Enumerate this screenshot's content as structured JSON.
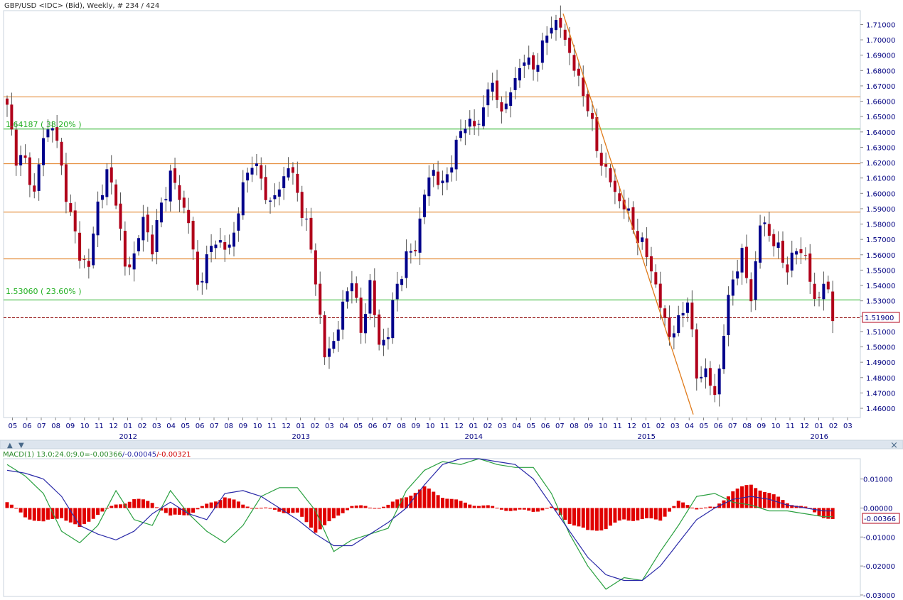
{
  "header": {
    "instrument": "GBP/USD <IDC> (Bid), Weekly, # 234 / 424"
  },
  "colors": {
    "background": "#ffffff",
    "frame": "#c8d3de",
    "axis_text": "#000080",
    "bull": "#00008b",
    "bear": "#b0001a",
    "wick": "#555555",
    "orange_line": "#e07a1a",
    "fib_line": "#22b022",
    "fib_text": "#22b022",
    "price_line": "#8b0000",
    "macd_signal": "#2a2aa8",
    "macd_line": "#2aa040",
    "macd_hist": "#e00000"
  },
  "price_axis": {
    "ticks": [
      "1.71000",
      "1.70000",
      "1.69000",
      "1.68000",
      "1.67000",
      "1.66000",
      "1.65000",
      "1.64000",
      "1.63000",
      "1.62000",
      "1.61000",
      "1.60000",
      "1.59000",
      "1.58000",
      "1.57000",
      "1.56000",
      "1.55000",
      "1.54000",
      "1.53000",
      "1.52000",
      "1.51000",
      "1.50000",
      "1.49000",
      "1.48000",
      "1.47000",
      "1.46000"
    ],
    "current_label": "1.51900"
  },
  "time_axis": {
    "months": [
      "05",
      "06",
      "07",
      "08",
      "09",
      "10",
      "11",
      "12",
      "01",
      "02",
      "03",
      "04",
      "05",
      "06",
      "07",
      "08",
      "09",
      "10",
      "11",
      "12",
      "01",
      "02",
      "03",
      "04",
      "05",
      "06",
      "07",
      "08",
      "09",
      "10",
      "11",
      "12",
      "01",
      "02",
      "03",
      "04",
      "05",
      "06",
      "07",
      "08",
      "09",
      "10",
      "11",
      "12",
      "01",
      "02",
      "03",
      "04",
      "05",
      "06",
      "07",
      "08",
      "09",
      "10",
      "11",
      "12",
      "01",
      "02",
      "03"
    ],
    "years": [
      {
        "label": "2012",
        "month_index": 8
      },
      {
        "label": "2013",
        "month_index": 20
      },
      {
        "label": "2014",
        "month_index": 32
      },
      {
        "label": "2015",
        "month_index": 44
      },
      {
        "label": "2016",
        "month_index": 56
      }
    ]
  },
  "levels": {
    "fib_382_label": "1.64187 ( 38.20% )",
    "fib_236_label": "1.53060 ( 23.60% )"
  },
  "macd_panel": {
    "legend_title": "MACD(1) 13.0;24.0;9.0=",
    "legend_hist": "-0.00366",
    "legend_signal": "/-0.00045",
    "legend_macd": "/-0.00321",
    "ticks": [
      "0.01000",
      "0.00000",
      "-0.01000",
      "-0.02000",
      "-0.03000"
    ],
    "current_label": "-0.00366",
    "collapse_icon": "▲",
    "expand_icon": "▼",
    "close_icon": "×"
  },
  "chart_data": {
    "type": "candlestick",
    "instrument": "GBP/USD",
    "timeframe": "Weekly",
    "y_range": [
      1.454,
      1.719
    ],
    "last_price": 1.519,
    "horizontal_levels": {
      "orange": [
        1.6628,
        1.6193,
        1.5878,
        1.5573
      ],
      "fib_green": [
        1.64187,
        1.5306
      ],
      "dashed_current": 1.519
    },
    "trendline": {
      "from": {
        "date": "2014-07",
        "price": 1.717
      },
      "to": {
        "date": "2015-04",
        "price": 1.456
      }
    },
    "anchors": [
      [
        0,
        1.655
      ],
      [
        2,
        1.624
      ],
      [
        4,
        1.62
      ],
      [
        6,
        1.6
      ],
      [
        8,
        1.636
      ],
      [
        10,
        1.646
      ],
      [
        12,
        1.616
      ],
      [
        14,
        1.585
      ],
      [
        16,
        1.56
      ],
      [
        18,
        1.552
      ],
      [
        20,
        1.594
      ],
      [
        22,
        1.612
      ],
      [
        24,
        1.598
      ],
      [
        26,
        1.55
      ],
      [
        28,
        1.56
      ],
      [
        30,
        1.583
      ],
      [
        32,
        1.565
      ],
      [
        34,
        1.592
      ],
      [
        36,
        1.612
      ],
      [
        38,
        1.598
      ],
      [
        40,
        1.582
      ],
      [
        42,
        1.54
      ],
      [
        44,
        1.556
      ],
      [
        46,
        1.572
      ],
      [
        48,
        1.562
      ],
      [
        50,
        1.574
      ],
      [
        52,
        1.604
      ],
      [
        54,
        1.622
      ],
      [
        56,
        1.608
      ],
      [
        58,
        1.593
      ],
      [
        60,
        1.603
      ],
      [
        62,
        1.619
      ],
      [
        64,
        1.6
      ],
      [
        66,
        1.579
      ],
      [
        68,
        1.545
      ],
      [
        70,
        1.493
      ],
      [
        72,
        1.504
      ],
      [
        74,
        1.525
      ],
      [
        76,
        1.547
      ],
      [
        78,
        1.508
      ],
      [
        80,
        1.542
      ],
      [
        82,
        1.5
      ],
      [
        84,
        1.51
      ],
      [
        86,
        1.541
      ],
      [
        88,
        1.558
      ],
      [
        90,
        1.565
      ],
      [
        92,
        1.6
      ],
      [
        94,
        1.616
      ],
      [
        96,
        1.603
      ],
      [
        98,
        1.622
      ],
      [
        100,
        1.64
      ],
      [
        102,
        1.648
      ],
      [
        104,
        1.642
      ],
      [
        106,
        1.672
      ],
      [
        108,
        1.661
      ],
      [
        110,
        1.655
      ],
      [
        112,
        1.676
      ],
      [
        114,
        1.687
      ],
      [
        116,
        1.682
      ],
      [
        118,
        1.694
      ],
      [
        120,
        1.712
      ],
      [
        122,
        1.708
      ],
      [
        124,
        1.692
      ],
      [
        126,
        1.672
      ],
      [
        128,
        1.658
      ],
      [
        130,
        1.628
      ],
      [
        132,
        1.615
      ],
      [
        134,
        1.6
      ],
      [
        136,
        1.592
      ],
      [
        138,
        1.578
      ],
      [
        140,
        1.566
      ],
      [
        142,
        1.552
      ],
      [
        144,
        1.526
      ],
      [
        146,
        1.508
      ],
      [
        148,
        1.515
      ],
      [
        150,
        1.533
      ],
      [
        152,
        1.48
      ],
      [
        154,
        1.485
      ],
      [
        156,
        1.466
      ],
      [
        158,
        1.51
      ],
      [
        160,
        1.546
      ],
      [
        162,
        1.56
      ],
      [
        164,
        1.531
      ],
      [
        166,
        1.58
      ],
      [
        168,
        1.575
      ],
      [
        170,
        1.562
      ],
      [
        172,
        1.552
      ],
      [
        174,
        1.563
      ],
      [
        176,
        1.56
      ],
      [
        178,
        1.527
      ],
      [
        180,
        1.544
      ],
      [
        182,
        1.519
      ]
    ],
    "macd": {
      "legend": {
        "hist": -0.00366,
        "signal": -0.00045,
        "macd": -0.00321
      },
      "y_range": [
        -0.0305,
        0.017
      ],
      "hist_anchors": [
        [
          0,
          0.002
        ],
        [
          4,
          -0.003
        ],
        [
          8,
          -0.005
        ],
        [
          12,
          -0.003
        ],
        [
          16,
          -0.007
        ],
        [
          20,
          -0.002
        ],
        [
          24,
          0.001
        ],
        [
          28,
          0.003
        ],
        [
          32,
          0.002
        ],
        [
          36,
          -0.003
        ],
        [
          40,
          -0.002
        ],
        [
          44,
          0.001
        ],
        [
          48,
          0.004
        ],
        [
          52,
          0.001
        ],
        [
          56,
          0.0
        ],
        [
          60,
          -0.001
        ],
        [
          64,
          -0.002
        ],
        [
          68,
          -0.008
        ],
        [
          72,
          -0.004
        ],
        [
          76,
          0.001
        ],
        [
          80,
          0.0
        ],
        [
          84,
          0.001
        ],
        [
          88,
          0.004
        ],
        [
          92,
          0.007
        ],
        [
          96,
          0.004
        ],
        [
          100,
          0.002
        ],
        [
          104,
          0.001
        ],
        [
          108,
          0.0
        ],
        [
          112,
          -0.001
        ],
        [
          116,
          -0.001
        ],
        [
          120,
          0.0
        ],
        [
          124,
          -0.005
        ],
        [
          128,
          -0.008
        ],
        [
          132,
          -0.007
        ],
        [
          136,
          -0.004
        ],
        [
          140,
          -0.004
        ],
        [
          144,
          -0.004
        ],
        [
          148,
          0.002
        ],
        [
          152,
          0.0
        ],
        [
          156,
          0.0
        ],
        [
          160,
          0.006
        ],
        [
          164,
          0.008
        ],
        [
          168,
          0.005
        ],
        [
          172,
          0.002
        ],
        [
          176,
          0.0
        ],
        [
          180,
          -0.003
        ],
        [
          182,
          -0.004
        ]
      ],
      "signal_anchors": [
        [
          0,
          0.013
        ],
        [
          4,
          0.012
        ],
        [
          8,
          0.01
        ],
        [
          12,
          0.004
        ],
        [
          16,
          -0.006
        ],
        [
          20,
          -0.009
        ],
        [
          24,
          -0.011
        ],
        [
          28,
          -0.008
        ],
        [
          32,
          -0.002
        ],
        [
          36,
          0.002
        ],
        [
          40,
          -0.002
        ],
        [
          44,
          -0.004
        ],
        [
          48,
          0.005
        ],
        [
          52,
          0.006
        ],
        [
          56,
          0.004
        ],
        [
          60,
          0.0
        ],
        [
          64,
          -0.004
        ],
        [
          68,
          -0.009
        ],
        [
          72,
          -0.013
        ],
        [
          76,
          -0.013
        ],
        [
          80,
          -0.009
        ],
        [
          84,
          -0.005
        ],
        [
          88,
          0.0
        ],
        [
          92,
          0.008
        ],
        [
          96,
          0.015
        ],
        [
          100,
          0.017
        ],
        [
          104,
          0.017
        ],
        [
          108,
          0.016
        ],
        [
          112,
          0.015
        ],
        [
          116,
          0.01
        ],
        [
          120,
          0.001
        ],
        [
          124,
          -0.008
        ],
        [
          128,
          -0.017
        ],
        [
          132,
          -0.023
        ],
        [
          136,
          -0.025
        ],
        [
          140,
          -0.025
        ],
        [
          144,
          -0.02
        ],
        [
          148,
          -0.012
        ],
        [
          152,
          -0.004
        ],
        [
          156,
          0.0
        ],
        [
          160,
          0.003
        ],
        [
          164,
          0.004
        ],
        [
          168,
          0.003
        ],
        [
          172,
          0.001
        ],
        [
          176,
          0.0
        ],
        [
          180,
          -0.001
        ],
        [
          182,
          -0.001
        ]
      ],
      "macd_anchors": [
        [
          0,
          0.015
        ],
        [
          4,
          0.011
        ],
        [
          8,
          0.005
        ],
        [
          12,
          -0.008
        ],
        [
          16,
          -0.012
        ],
        [
          20,
          -0.006
        ],
        [
          24,
          0.006
        ],
        [
          28,
          -0.004
        ],
        [
          32,
          -0.006
        ],
        [
          36,
          0.006
        ],
        [
          40,
          -0.002
        ],
        [
          44,
          -0.008
        ],
        [
          48,
          -0.012
        ],
        [
          52,
          -0.006
        ],
        [
          56,
          0.004
        ],
        [
          60,
          0.007
        ],
        [
          64,
          0.007
        ],
        [
          68,
          -0.001
        ],
        [
          72,
          -0.015
        ],
        [
          76,
          -0.011
        ],
        [
          80,
          -0.009
        ],
        [
          84,
          -0.007
        ],
        [
          88,
          0.006
        ],
        [
          92,
          0.013
        ],
        [
          96,
          0.016
        ],
        [
          100,
          0.015
        ],
        [
          104,
          0.017
        ],
        [
          108,
          0.015
        ],
        [
          112,
          0.014
        ],
        [
          116,
          0.014
        ],
        [
          120,
          0.005
        ],
        [
          124,
          -0.009
        ],
        [
          128,
          -0.02
        ],
        [
          132,
          -0.028
        ],
        [
          136,
          -0.024
        ],
        [
          140,
          -0.025
        ],
        [
          144,
          -0.015
        ],
        [
          148,
          -0.006
        ],
        [
          152,
          0.004
        ],
        [
          156,
          0.005
        ],
        [
          160,
          0.002
        ],
        [
          164,
          0.001
        ],
        [
          168,
          -0.001
        ],
        [
          172,
          -0.001
        ],
        [
          176,
          -0.002
        ],
        [
          180,
          -0.003
        ],
        [
          182,
          -0.003
        ]
      ]
    }
  }
}
